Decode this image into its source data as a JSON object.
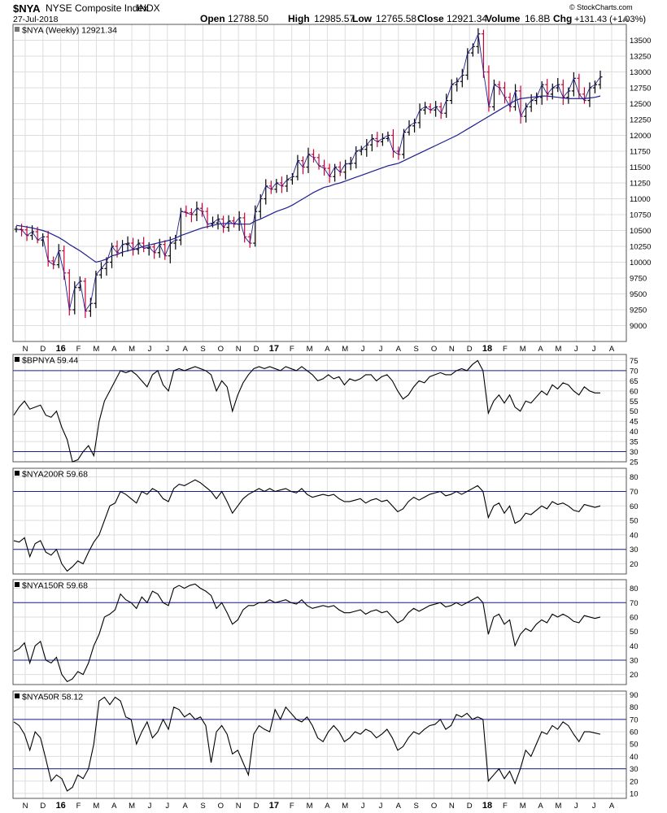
{
  "header": {
    "symbol": "$NYA",
    "name": "NYSE Composite Index",
    "exchange": "INDX",
    "date": "27-Jul-2018",
    "watermark": "© StockCharts.com",
    "open_label": "Open",
    "open": "12788.50",
    "high_label": "High",
    "high": "12985.57",
    "low_label": "Low",
    "low": "12765.58",
    "close_label": "Close",
    "close": "12921.34",
    "volume_label": "Volume",
    "volume": "16.8B",
    "chg_label": "Chg",
    "chg": "+131.43 (+1.03%)"
  },
  "colors": {
    "price_up": "#000000",
    "price_down": "#cc0033",
    "ma": "#1f1f8f",
    "ref_line": "#1f1f8f",
    "grid": "#dddddd"
  },
  "x_axis": {
    "labels": [
      "N",
      "D",
      "16",
      "F",
      "M",
      "A",
      "M",
      "J",
      "J",
      "A",
      "S",
      "O",
      "N",
      "D",
      "17",
      "F",
      "M",
      "A",
      "M",
      "J",
      "J",
      "A",
      "S",
      "O",
      "N",
      "D",
      "18",
      "F",
      "M",
      "A",
      "M",
      "J",
      "J",
      "A"
    ],
    "bold": [
      "16",
      "17",
      "18"
    ]
  },
  "chart_data": [
    {
      "type": "ohlc",
      "legend": "$NYA (Weekly) 12921.34",
      "ylim": [
        8750,
        13750
      ],
      "y_ticks": [
        9000,
        9250,
        9500,
        9750,
        10000,
        10250,
        10500,
        10750,
        11000,
        11250,
        11500,
        11750,
        12000,
        12250,
        12500,
        12750,
        13000,
        13250,
        13500
      ],
      "series": [
        {
          "name": "price",
          "close": [
            10520,
            10510,
            10420,
            10480,
            10350,
            10400,
            10020,
            9960,
            10180,
            9830,
            9250,
            9600,
            9700,
            9230,
            9350,
            9800,
            9900,
            10000,
            10250,
            10150,
            10280,
            10300,
            10200,
            10300,
            10220,
            10240,
            10150,
            10280,
            10100,
            10300,
            10350,
            10800,
            10780,
            10750,
            10850,
            10800,
            10600,
            10620,
            10680,
            10550,
            10650,
            10600,
            10700,
            10400,
            10300,
            10800,
            11000,
            11200,
            11150,
            11250,
            11200,
            11300,
            11350,
            11600,
            11500,
            11700,
            11650,
            11520,
            11480,
            11350,
            11500,
            11420,
            11550,
            11560,
            11750,
            11780,
            11850,
            11950,
            11900,
            11950,
            12000,
            11750,
            11700,
            12050,
            12150,
            12200,
            12400,
            12450,
            12400,
            12450,
            12350,
            12550,
            12800,
            12850,
            12950,
            13300,
            13400,
            13600,
            13000,
            12450,
            12800,
            12750,
            12600,
            12450,
            12700,
            12300,
            12450,
            12550,
            12600,
            12800,
            12650,
            12750,
            12800,
            12600,
            12700,
            12900,
            12650,
            12550,
            12750,
            12800,
            12921
          ]
        }
      ],
      "ma_series": {
        "name": "MA",
        "values": [
          10580,
          10570,
          10555,
          10540,
          10520,
          10500,
          10470,
          10430,
          10390,
          10340,
          10280,
          10230,
          10180,
          10120,
          10060,
          10000,
          10020,
          10050,
          10100,
          10120,
          10160,
          10180,
          10200,
          10220,
          10250,
          10270,
          10290,
          10310,
          10330,
          10350,
          10380,
          10420,
          10450,
          10480,
          10510,
          10540,
          10560,
          10580,
          10600,
          10610,
          10610,
          10610,
          10600,
          10600,
          10600,
          10650,
          10680,
          10720,
          10760,
          10800,
          10830,
          10860,
          10900,
          10950,
          11000,
          11050,
          11100,
          11140,
          11180,
          11200,
          11230,
          11250,
          11280,
          11310,
          11340,
          11370,
          11400,
          11430,
          11460,
          11490,
          11520,
          11540,
          11560,
          11600,
          11640,
          11680,
          11720,
          11760,
          11800,
          11840,
          11880,
          11920,
          11960,
          12000,
          12050,
          12100,
          12150,
          12200,
          12250,
          12300,
          12350,
          12400,
          12450,
          12500,
          12550,
          12580,
          12590,
          12600,
          12610,
          12620,
          12620,
          12610,
          12600,
          12590,
          12580,
          12580,
          12580,
          12580,
          12590,
          12600,
          12620
        ]
      }
    },
    {
      "type": "line",
      "legend": "$BPNYA 59.44",
      "ylim": [
        25,
        78
      ],
      "y_ticks": [
        25,
        30,
        35,
        40,
        45,
        50,
        55,
        60,
        65,
        70,
        75
      ],
      "ref_lines": [
        30,
        70
      ],
      "series": [
        {
          "name": "$BPNYA",
          "values": [
            48,
            52,
            55,
            51,
            52,
            53,
            48,
            47,
            50,
            42,
            36,
            25,
            26,
            30,
            33,
            28,
            45,
            55,
            60,
            65,
            70,
            69,
            70,
            68,
            65,
            62,
            68,
            70,
            63,
            60,
            70,
            71,
            70,
            71,
            72,
            71,
            70,
            68,
            60,
            65,
            62,
            50,
            58,
            64,
            68,
            71,
            72,
            71,
            72,
            71,
            70,
            72,
            71,
            70,
            72,
            70,
            68,
            65,
            66,
            68,
            66,
            67,
            63,
            66,
            65,
            66,
            68,
            68,
            65,
            67,
            68,
            65,
            60,
            56,
            58,
            62,
            65,
            64,
            67,
            68,
            69,
            68,
            68,
            70,
            71,
            70,
            73,
            75,
            70,
            49,
            55,
            58,
            54,
            58,
            52,
            50,
            55,
            54,
            57,
            60,
            58,
            63,
            61,
            64,
            63,
            60,
            58,
            62,
            60,
            59,
            59
          ]
        }
      ]
    },
    {
      "type": "line",
      "legend": "$NYA200R 59.68",
      "ylim": [
        13,
        86
      ],
      "y_ticks": [
        20,
        30,
        40,
        50,
        60,
        70,
        80
      ],
      "ref_lines": [
        30,
        70
      ],
      "series": [
        {
          "name": "$NYA200R",
          "values": [
            36,
            35,
            38,
            25,
            34,
            36,
            28,
            26,
            30,
            20,
            15,
            18,
            22,
            20,
            28,
            35,
            40,
            50,
            60,
            62,
            70,
            68,
            65,
            62,
            70,
            68,
            72,
            70,
            65,
            63,
            72,
            75,
            74,
            76,
            78,
            76,
            73,
            70,
            65,
            70,
            63,
            55,
            60,
            65,
            68,
            70,
            72,
            70,
            72,
            70,
            71,
            72,
            70,
            69,
            72,
            68,
            66,
            67,
            68,
            67,
            68,
            65,
            63,
            63,
            64,
            65,
            62,
            64,
            65,
            63,
            64,
            60,
            56,
            58,
            63,
            66,
            64,
            66,
            68,
            69,
            70,
            67,
            68,
            70,
            68,
            70,
            72,
            74,
            70,
            52,
            60,
            62,
            55,
            60,
            48,
            50,
            55,
            54,
            57,
            60,
            58,
            63,
            61,
            62,
            60,
            57,
            56,
            61,
            60,
            59,
            60
          ]
        }
      ]
    },
    {
      "type": "line",
      "legend": "$NYA150R 59.68",
      "ylim": [
        13,
        86
      ],
      "y_ticks": [
        20,
        30,
        40,
        50,
        60,
        70,
        80
      ],
      "ref_lines": [
        30,
        70
      ],
      "series": [
        {
          "name": "$NYA150R",
          "values": [
            36,
            38,
            42,
            28,
            40,
            43,
            30,
            28,
            32,
            20,
            15,
            17,
            22,
            20,
            28,
            40,
            48,
            60,
            62,
            65,
            76,
            72,
            70,
            66,
            74,
            70,
            78,
            76,
            70,
            68,
            80,
            82,
            80,
            82,
            83,
            80,
            78,
            75,
            66,
            70,
            63,
            55,
            58,
            65,
            68,
            68,
            70,
            70,
            72,
            70,
            71,
            72,
            70,
            69,
            72,
            68,
            66,
            67,
            68,
            67,
            68,
            65,
            63,
            63,
            64,
            65,
            62,
            64,
            65,
            63,
            64,
            60,
            56,
            58,
            63,
            66,
            64,
            66,
            68,
            69,
            70,
            67,
            68,
            70,
            68,
            70,
            72,
            74,
            70,
            48,
            60,
            62,
            55,
            58,
            40,
            48,
            52,
            50,
            55,
            58,
            56,
            62,
            60,
            62,
            60,
            57,
            56,
            61,
            60,
            59,
            60
          ]
        }
      ]
    },
    {
      "type": "line",
      "legend": "$NYA50R 58.12",
      "ylim": [
        6,
        93
      ],
      "y_ticks": [
        10,
        20,
        30,
        40,
        50,
        60,
        70,
        80,
        90
      ],
      "ref_lines": [
        30,
        70
      ],
      "series": [
        {
          "name": "$NYA50R",
          "values": [
            68,
            65,
            58,
            45,
            60,
            55,
            38,
            20,
            25,
            22,
            12,
            15,
            25,
            22,
            30,
            50,
            85,
            88,
            82,
            88,
            85,
            72,
            70,
            50,
            60,
            68,
            55,
            60,
            70,
            62,
            80,
            78,
            72,
            75,
            70,
            72,
            65,
            35,
            60,
            65,
            58,
            42,
            45,
            35,
            25,
            58,
            65,
            62,
            60,
            78,
            70,
            80,
            75,
            70,
            68,
            72,
            65,
            55,
            52,
            60,
            65,
            60,
            52,
            55,
            60,
            58,
            62,
            60,
            55,
            58,
            62,
            55,
            45,
            48,
            55,
            60,
            58,
            62,
            65,
            66,
            70,
            62,
            65,
            74,
            72,
            75,
            70,
            72,
            70,
            20,
            25,
            30,
            22,
            28,
            18,
            30,
            45,
            40,
            50,
            60,
            58,
            65,
            62,
            68,
            65,
            58,
            52,
            60,
            60,
            59,
            58
          ]
        }
      ]
    }
  ]
}
